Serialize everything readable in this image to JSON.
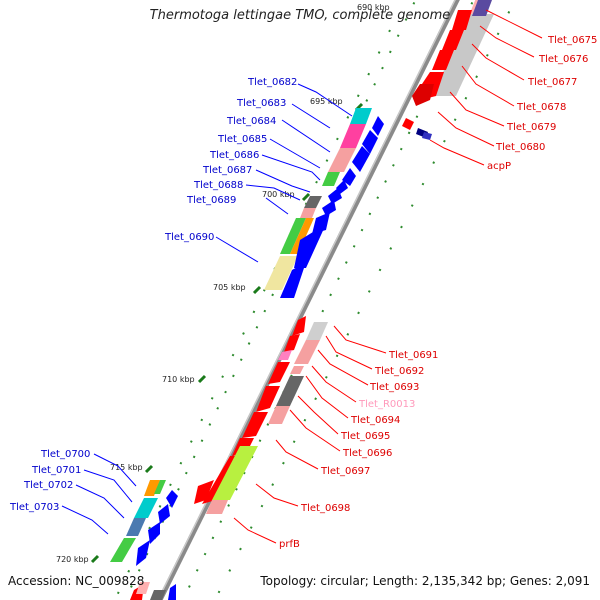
{
  "title": "Thermotoga lettingae TMO, complete genome",
  "accession": "Accession: NC_009828",
  "topology": "Topology: circular; Length: 2,135,342 bp; Genes: 2,091",
  "scale_labels": [
    "690 kbp",
    "695 kbp",
    "700 kbp",
    "705 kbp",
    "710 kbp",
    "715 kbp",
    "720 kbp"
  ],
  "colors": {
    "forward_cds": "#ff0000",
    "reverse_cds": "#0000ff",
    "forward_label": "#dd0000",
    "reverse_label": "#0000cc",
    "rna_label": "#ff99bb",
    "backbone": "#888888",
    "tick": "#228b22"
  },
  "labels_left": [
    "Tlet_0682",
    "Tlet_0683",
    "Tlet_0684",
    "Tlet_0685",
    "Tlet_0686",
    "Tlet_0687",
    "Tlet_0688",
    "Tlet_0689",
    "Tlet_0690",
    "Tlet_0700",
    "Tlet_0701",
    "Tlet_0702",
    "Tlet_0703"
  ],
  "labels_right": [
    "Tlet_0675",
    "Tlet_0676",
    "Tlet_0677",
    "Tlet_0678",
    "Tlet_0679",
    "Tlet_0680",
    "acpP",
    "Tlet_0691",
    "Tlet_0692",
    "Tlet_0693",
    "Tlet_R0013",
    "Tlet_0694",
    "Tlet_0695",
    "Tlet_0696",
    "Tlet_0697",
    "Tlet_0698",
    "prfB"
  ]
}
